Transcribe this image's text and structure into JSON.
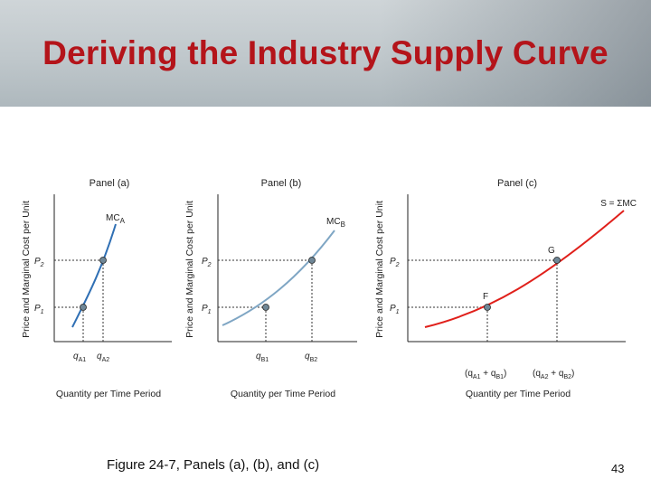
{
  "slide": {
    "title": "Deriving the Industry Supply Curve",
    "caption": "Figure 24-7, Panels (a), (b), and (c)",
    "page_number": "43"
  },
  "colors": {
    "title": "#b4141a",
    "mc_a_curve": "#2f6fb4",
    "mc_b_curve": "#7fa6c4",
    "supply_curve": "#e0201b",
    "points": "#6f8797"
  },
  "panels": [
    {
      "id": "a",
      "label": "Panel (a)",
      "y_axis_title": "Price and Marginal Cost per Unit",
      "x_axis_title": "Quantity per Time Period",
      "curve_label": "MC",
      "curve_label_sub": "A",
      "price_labels": [
        "P",
        "P"
      ],
      "price_subs": [
        "2",
        "1"
      ],
      "qty_labels": [
        {
          "main": "q",
          "sub": "A1"
        },
        {
          "main": "q",
          "sub": "A2"
        }
      ],
      "point_labels": []
    },
    {
      "id": "b",
      "label": "Panel (b)",
      "y_axis_title": "Price and Marginal Cost per Unit",
      "x_axis_title": "Quantity per Time Period",
      "curve_label": "MC",
      "curve_label_sub": "B",
      "price_labels": [
        "P",
        "P"
      ],
      "price_subs": [
        "2",
        "1"
      ],
      "qty_labels": [
        {
          "main": "q",
          "sub": "B1"
        },
        {
          "main": "q",
          "sub": "B2"
        }
      ],
      "point_labels": []
    },
    {
      "id": "c",
      "label": "Panel (c)",
      "y_axis_title": "Price and Marginal Cost per Unit",
      "x_axis_title": "Quantity per Time Period",
      "curve_label": "S = ΣMC",
      "curve_label_sub": "",
      "price_labels": [
        "P",
        "P"
      ],
      "price_subs": [
        "2",
        "1"
      ],
      "qty_labels": [
        {
          "main": "(q",
          "sub": "A1",
          "mid": " + q",
          "sub2": "B1",
          "end": ")"
        },
        {
          "main": "(q",
          "sub": "A2",
          "mid": " + q",
          "sub2": "B2",
          "end": ")"
        }
      ],
      "point_labels": [
        "F",
        "G"
      ]
    }
  ]
}
